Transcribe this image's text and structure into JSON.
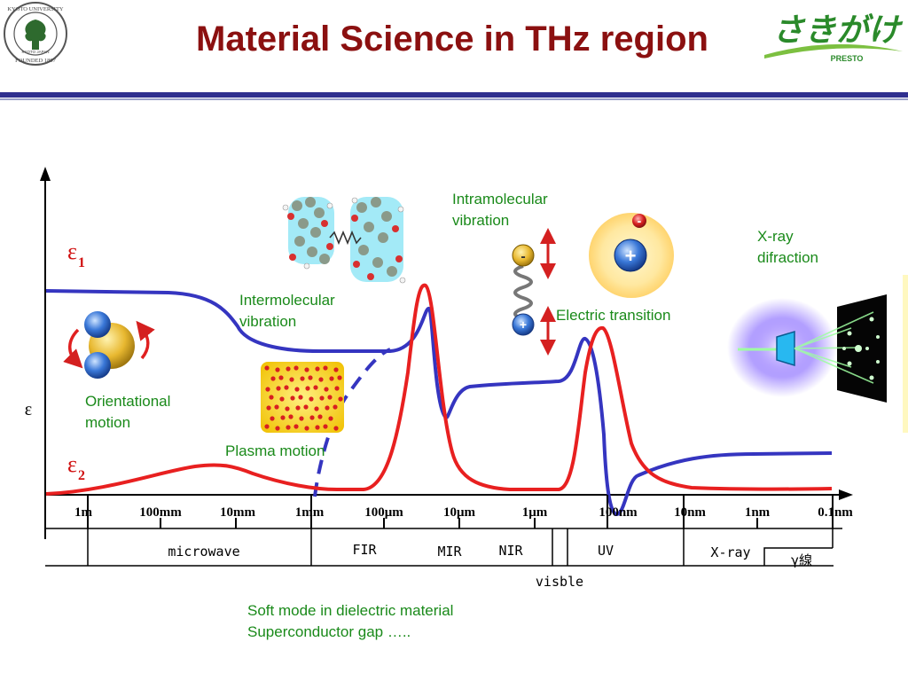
{
  "header": {
    "title": "Material Science in THz region",
    "left_logo_lettering": [
      "KYOTO UNIVERSITY",
      "FOUNDED 1897",
      "KYOTO JAPAN"
    ],
    "right_logo_lettering": [
      "さきがけ",
      "PRESTO"
    ]
  },
  "axes": {
    "y_label": "ε",
    "eps1_label": "ε",
    "eps1_sub": "1",
    "eps2_label": "ε",
    "eps2_sub": "2"
  },
  "wavelength_ticks": [
    "1m",
    "100mm",
    "10mm",
    "1mm",
    "100μm",
    "10μm",
    "1μm",
    "100nm",
    "10nm",
    "1nm",
    "0.1nm"
  ],
  "bands": {
    "microwave": "microwave",
    "fir": "FIR",
    "mir": "MIR",
    "nir": "NIR",
    "uv": "UV",
    "xray": "X-ray",
    "gamma": "γ線",
    "visible": "visble"
  },
  "annotations": {
    "orientational": [
      "Orientational",
      "motion"
    ],
    "intermolecular": [
      "Intermolecular",
      "vibration"
    ],
    "plasma": "Plasma motion",
    "intramolecular": [
      "Intramolecular",
      "vibration"
    ],
    "electric": "Electric transition",
    "xray": [
      "X-ray",
      "difraction"
    ],
    "soft_mode": [
      "Soft mode in dielectric material",
      "Superconductor gap  ….."
    ]
  },
  "symbols": {
    "minus": "-",
    "plus": "+"
  },
  "colors": {
    "title": "#8b1010",
    "eps1_curve": "#3535c0",
    "eps2_curve": "#e82020",
    "annotation_text": "#1a8a1a",
    "arrow_red": "#d42020"
  }
}
